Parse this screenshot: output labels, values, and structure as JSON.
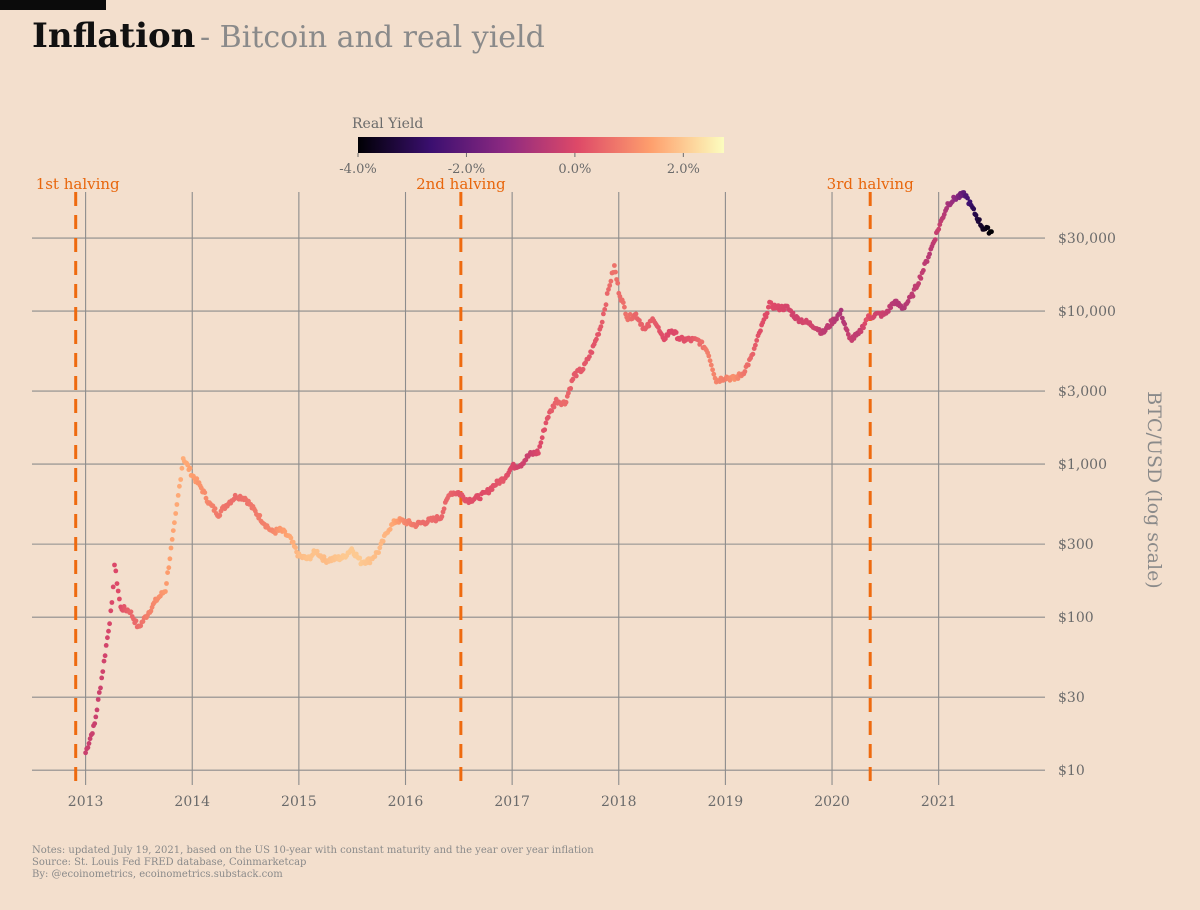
{
  "header": {
    "title": "Inflation",
    "subtitle": "- Bitcoin and real yield"
  },
  "notes": [
    "Notes: updated July 19, 2021, based on the US 10-year with constant maturity and the year over year inflation",
    "Source: St. Louis Fed FRED database, Coinmarketcap",
    "By: @ecoinometrics, ecoinometrics.substack.com"
  ],
  "colors": {
    "background": "#f3dfcd",
    "grid": "#8c8c8c",
    "halving": "#ee6a0f",
    "colormap": [
      "#000004",
      "#3b0f70",
      "#8c2981",
      "#de4968",
      "#fe9f6d",
      "#fcfdbf"
    ]
  },
  "chart_data": {
    "type": "scatter",
    "ylabel": "BTC/USD (log scale)",
    "y_scale": "log",
    "ylim": [
      8,
      60000
    ],
    "xlim": [
      "2012-07-01",
      "2021-12-31"
    ],
    "x_ticks": [
      {
        "label": "2013",
        "date": "2013-01-01"
      },
      {
        "label": "2014",
        "date": "2014-01-01"
      },
      {
        "label": "2015",
        "date": "2015-01-01"
      },
      {
        "label": "2016",
        "date": "2016-01-01"
      },
      {
        "label": "2017",
        "date": "2017-01-01"
      },
      {
        "label": "2018",
        "date": "2018-01-01"
      },
      {
        "label": "2019",
        "date": "2019-01-01"
      },
      {
        "label": "2020",
        "date": "2020-01-01"
      },
      {
        "label": "2021",
        "date": "2021-01-01"
      }
    ],
    "y_ticks": [
      {
        "label": "$10",
        "value": 10
      },
      {
        "label": "$30",
        "value": 30
      },
      {
        "label": "$100",
        "value": 100
      },
      {
        "label": "$300",
        "value": 300
      },
      {
        "label": "$1,000",
        "value": 1000
      },
      {
        "label": "$3,000",
        "value": 3000
      },
      {
        "label": "$10,000",
        "value": 10000
      },
      {
        "label": "$30,000",
        "value": 30000
      }
    ],
    "grid": true,
    "annotations": [
      {
        "label": "1st halving",
        "date": "2012-11-28"
      },
      {
        "label": "2nd halving",
        "date": "2016-07-09"
      },
      {
        "label": "3rd halving",
        "date": "2020-05-11"
      }
    ],
    "colorbar": {
      "title": "Real Yield",
      "min": -4.0,
      "max": 2.75,
      "ticks": [
        {
          "label": "-4.0%",
          "value": -4.0
        },
        {
          "label": "-2.0%",
          "value": -2.0
        },
        {
          "label": "0.0%",
          "value": 0.0
        },
        {
          "label": "2.0%",
          "value": 2.0
        }
      ]
    },
    "series": [
      {
        "color_by": "real_yield_percent",
        "points": [
          {
            "date": "2013-01-01",
            "price": 13,
            "real_yield": -0.3
          },
          {
            "date": "2013-02-01",
            "price": 20,
            "real_yield": -0.3
          },
          {
            "date": "2013-03-01",
            "price": 45,
            "real_yield": -0.2
          },
          {
            "date": "2013-04-01",
            "price": 120,
            "real_yield": 0.0
          },
          {
            "date": "2013-04-10",
            "price": 220,
            "real_yield": 0.0
          },
          {
            "date": "2013-05-01",
            "price": 115,
            "real_yield": 0.1
          },
          {
            "date": "2013-06-01",
            "price": 110,
            "real_yield": 0.5
          },
          {
            "date": "2013-07-01",
            "price": 85,
            "real_yield": 0.6
          },
          {
            "date": "2013-08-01",
            "price": 105,
            "real_yield": 0.9
          },
          {
            "date": "2013-09-01",
            "price": 130,
            "real_yield": 1.1
          },
          {
            "date": "2013-10-01",
            "price": 150,
            "real_yield": 1.3
          },
          {
            "date": "2013-11-01",
            "price": 400,
            "real_yield": 1.5
          },
          {
            "date": "2013-12-01",
            "price": 1100,
            "real_yield": 1.6
          },
          {
            "date": "2014-01-01",
            "price": 850,
            "real_yield": 1.4
          },
          {
            "date": "2014-02-01",
            "price": 700,
            "real_yield": 1.2
          },
          {
            "date": "2014-03-01",
            "price": 550,
            "real_yield": 1.0
          },
          {
            "date": "2014-04-01",
            "price": 470,
            "real_yield": 0.8
          },
          {
            "date": "2014-05-01",
            "price": 550,
            "real_yield": 0.7
          },
          {
            "date": "2014-06-01",
            "price": 620,
            "real_yield": 0.6
          },
          {
            "date": "2014-07-01",
            "price": 600,
            "real_yield": 0.7
          },
          {
            "date": "2014-08-01",
            "price": 500,
            "real_yield": 0.8
          },
          {
            "date": "2014-09-01",
            "price": 420,
            "real_yield": 0.9
          },
          {
            "date": "2014-10-01",
            "price": 360,
            "real_yield": 1.0
          },
          {
            "date": "2014-11-01",
            "price": 370,
            "real_yield": 1.3
          },
          {
            "date": "2014-12-01",
            "price": 330,
            "real_yield": 1.5
          },
          {
            "date": "2015-01-01",
            "price": 250,
            "real_yield": 1.8
          },
          {
            "date": "2015-02-01",
            "price": 240,
            "real_yield": 1.9
          },
          {
            "date": "2015-03-01",
            "price": 270,
            "real_yield": 1.9
          },
          {
            "date": "2015-04-01",
            "price": 235,
            "real_yield": 1.8
          },
          {
            "date": "2015-05-01",
            "price": 240,
            "real_yield": 1.9
          },
          {
            "date": "2015-06-01",
            "price": 245,
            "real_yield": 2.0
          },
          {
            "date": "2015-07-01",
            "price": 280,
            "real_yield": 2.0
          },
          {
            "date": "2015-08-01",
            "price": 230,
            "real_yield": 2.0
          },
          {
            "date": "2015-09-01",
            "price": 235,
            "real_yield": 1.9
          },
          {
            "date": "2015-10-01",
            "price": 270,
            "real_yield": 1.8
          },
          {
            "date": "2015-11-01",
            "price": 370,
            "real_yield": 1.7
          },
          {
            "date": "2015-12-01",
            "price": 430,
            "real_yield": 1.4
          },
          {
            "date": "2016-01-01",
            "price": 420,
            "real_yield": 1.0
          },
          {
            "date": "2016-02-01",
            "price": 400,
            "real_yield": 0.8
          },
          {
            "date": "2016-03-01",
            "price": 415,
            "real_yield": 0.6
          },
          {
            "date": "2016-04-01",
            "price": 430,
            "real_yield": 0.6
          },
          {
            "date": "2016-05-01",
            "price": 450,
            "real_yield": 0.5
          },
          {
            "date": "2016-06-01",
            "price": 650,
            "real_yield": 0.5
          },
          {
            "date": "2016-07-01",
            "price": 650,
            "real_yield": 0.3
          },
          {
            "date": "2016-08-01",
            "price": 580,
            "real_yield": 0.2
          },
          {
            "date": "2016-09-01",
            "price": 600,
            "real_yield": 0.1
          },
          {
            "date": "2016-10-01",
            "price": 640,
            "real_yield": 0.1
          },
          {
            "date": "2016-11-01",
            "price": 730,
            "real_yield": 0.2
          },
          {
            "date": "2016-12-01",
            "price": 800,
            "real_yield": 0.3
          },
          {
            "date": "2017-01-01",
            "price": 960,
            "real_yield": 0.0
          },
          {
            "date": "2017-02-01",
            "price": 1000,
            "real_yield": -0.2
          },
          {
            "date": "2017-03-01",
            "price": 1150,
            "real_yield": -0.3
          },
          {
            "date": "2017-04-01",
            "price": 1200,
            "real_yield": 0.0
          },
          {
            "date": "2017-05-01",
            "price": 2000,
            "real_yield": 0.2
          },
          {
            "date": "2017-06-01",
            "price": 2600,
            "real_yield": 0.5
          },
          {
            "date": "2017-07-01",
            "price": 2500,
            "real_yield": 0.6
          },
          {
            "date": "2017-08-01",
            "price": 3800,
            "real_yield": 0.3
          },
          {
            "date": "2017-09-01",
            "price": 4200,
            "real_yield": 0.3
          },
          {
            "date": "2017-10-01",
            "price": 5500,
            "real_yield": 0.2
          },
          {
            "date": "2017-11-01",
            "price": 8000,
            "real_yield": 0.3
          },
          {
            "date": "2017-12-01",
            "price": 15000,
            "real_yield": 0.6
          },
          {
            "date": "2017-12-17",
            "price": 19500,
            "real_yield": 0.7
          },
          {
            "date": "2018-01-01",
            "price": 13500,
            "real_yield": 0.6
          },
          {
            "date": "2018-02-01",
            "price": 9000,
            "real_yield": 0.7
          },
          {
            "date": "2018-03-01",
            "price": 9500,
            "real_yield": 0.5
          },
          {
            "date": "2018-04-01",
            "price": 7500,
            "real_yield": 0.4
          },
          {
            "date": "2018-05-01",
            "price": 9000,
            "real_yield": 0.4
          },
          {
            "date": "2018-06-01",
            "price": 6500,
            "real_yield": 0.1
          },
          {
            "date": "2018-07-01",
            "price": 7500,
            "real_yield": 0.0
          },
          {
            "date": "2018-08-01",
            "price": 6500,
            "real_yield": 0.1
          },
          {
            "date": "2018-09-01",
            "price": 6500,
            "real_yield": 0.2
          },
          {
            "date": "2018-10-01",
            "price": 6400,
            "real_yield": 0.5
          },
          {
            "date": "2018-11-01",
            "price": 5500,
            "real_yield": 0.9
          },
          {
            "date": "2018-12-01",
            "price": 3500,
            "real_yield": 1.0
          },
          {
            "date": "2019-01-01",
            "price": 3700,
            "real_yield": 0.9
          },
          {
            "date": "2019-02-01",
            "price": 3600,
            "real_yield": 1.2
          },
          {
            "date": "2019-03-01",
            "price": 3900,
            "real_yield": 0.8
          },
          {
            "date": "2019-04-01",
            "price": 5000,
            "real_yield": 0.5
          },
          {
            "date": "2019-05-01",
            "price": 7500,
            "real_yield": 0.1
          },
          {
            "date": "2019-06-01",
            "price": 11000,
            "real_yield": 0.1
          },
          {
            "date": "2019-07-01",
            "price": 10500,
            "real_yield": 0.0
          },
          {
            "date": "2019-08-01",
            "price": 10500,
            "real_yield": -0.1
          },
          {
            "date": "2019-09-01",
            "price": 9000,
            "real_yield": -0.2
          },
          {
            "date": "2019-10-01",
            "price": 8500,
            "real_yield": -0.1
          },
          {
            "date": "2019-11-01",
            "price": 8000,
            "real_yield": -0.2
          },
          {
            "date": "2019-12-01",
            "price": 7200,
            "real_yield": -0.5
          },
          {
            "date": "2020-01-01",
            "price": 8500,
            "real_yield": -0.5
          },
          {
            "date": "2020-02-01",
            "price": 9800,
            "real_yield": -0.8
          },
          {
            "date": "2020-03-01",
            "price": 6500,
            "real_yield": -0.3
          },
          {
            "date": "2020-04-01",
            "price": 7000,
            "real_yield": -0.5
          },
          {
            "date": "2020-05-01",
            "price": 9000,
            "real_yield": 0.2
          },
          {
            "date": "2020-06-01",
            "price": 9500,
            "real_yield": -0.2
          },
          {
            "date": "2020-07-01",
            "price": 9500,
            "real_yield": -0.3
          },
          {
            "date": "2020-08-01",
            "price": 11500,
            "real_yield": -0.6
          },
          {
            "date": "2020-09-01",
            "price": 10500,
            "real_yield": -0.7
          },
          {
            "date": "2020-10-01",
            "price": 12500,
            "real_yield": -0.5
          },
          {
            "date": "2020-11-01",
            "price": 17000,
            "real_yield": -0.4
          },
          {
            "date": "2020-12-01",
            "price": 24000,
            "real_yield": -0.6
          },
          {
            "date": "2021-01-01",
            "price": 35000,
            "real_yield": -0.3
          },
          {
            "date": "2021-02-01",
            "price": 50000,
            "real_yield": -0.8
          },
          {
            "date": "2021-03-01",
            "price": 55000,
            "real_yield": -1.3
          },
          {
            "date": "2021-04-01",
            "price": 58000,
            "real_yield": -2.2
          },
          {
            "date": "2021-05-01",
            "price": 45000,
            "real_yield": -3.0
          },
          {
            "date": "2021-06-01",
            "price": 35000,
            "real_yield": -3.6
          },
          {
            "date": "2021-07-01",
            "price": 33000,
            "real_yield": -4.0
          }
        ]
      }
    ]
  }
}
